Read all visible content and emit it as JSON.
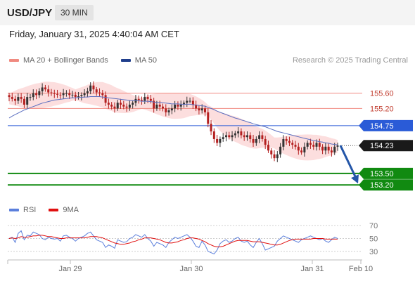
{
  "header": {
    "symbol": "USD/JPY",
    "interval": "30 MIN"
  },
  "datetime": "Friday, January 31, 2025 4:40:04 AM CET",
  "legend": {
    "bb_label": "MA 20 + Bollinger Bands",
    "bb_color": "#f08a80",
    "ma50_label": "MA 50",
    "ma50_color": "#1f3e8c"
  },
  "credit": "Research © 2025 Trading Central",
  "rsi_legend": {
    "rsi_label": "RSI",
    "rsi_color": "#5b7fdc",
    "ma_label": "9MA",
    "ma_color": "#e01010"
  },
  "colors": {
    "up": "#333333",
    "down": "#b42020",
    "band": "#fbd6d6",
    "resistance": "#f08a80",
    "last": "#1a1a1a",
    "ma50_level": "#2a5bd7",
    "support": "#118a11",
    "arrow": "#2456a8"
  },
  "chart_data": [
    {
      "type": "candlestick",
      "symbol": "USD/JPY",
      "ylim": [
        152.8,
        156.2
      ],
      "x_ticks": [
        "Jan 29",
        "Jan 30",
        "Jan 31",
        "Feb 10"
      ],
      "levels": [
        {
          "value": 155.6,
          "label": "155.60",
          "kind": "resistance"
        },
        {
          "value": 155.2,
          "label": "155.20",
          "kind": "resistance"
        },
        {
          "value": 154.75,
          "label": "154.75",
          "kind": "ma50"
        },
        {
          "value": 154.23,
          "label": "154.23",
          "kind": "last"
        },
        {
          "value": 153.5,
          "label": "153.50",
          "kind": "support"
        },
        {
          "value": 153.2,
          "label": "153.20",
          "kind": "support"
        }
      ],
      "forecast": {
        "from": 154.23,
        "to": 153.2,
        "direction": "down"
      },
      "close": [
        155.5,
        155.45,
        155.4,
        155.5,
        155.45,
        155.3,
        155.5,
        155.5,
        155.6,
        155.55,
        155.65,
        155.75,
        155.7,
        155.62,
        155.6,
        155.58,
        155.56,
        155.55,
        155.6,
        155.6,
        155.55,
        155.56,
        155.5,
        155.52,
        155.55,
        155.6,
        155.65,
        155.8,
        155.7,
        155.62,
        155.6,
        155.55,
        155.35,
        155.3,
        155.25,
        155.2,
        155.35,
        155.3,
        155.25,
        155.22,
        155.3,
        155.35,
        155.45,
        155.42,
        155.4,
        155.5,
        155.45,
        155.4,
        155.2,
        155.3,
        155.25,
        155.2,
        155.1,
        155.15,
        155.2,
        155.3,
        155.25,
        155.3,
        155.35,
        155.4,
        155.4,
        155.3,
        155.2,
        155.15,
        155.2,
        155.1,
        154.8,
        154.6,
        154.4,
        154.3,
        154.4,
        154.45,
        154.5,
        154.45,
        154.5,
        154.55,
        154.6,
        154.5,
        154.45,
        154.5,
        154.4,
        154.3,
        154.4,
        154.5,
        154.4,
        154.25,
        154.1,
        154.0,
        153.9,
        154.0,
        154.2,
        154.4,
        154.35,
        154.3,
        154.25,
        154.2,
        154.1,
        154.05,
        154.2,
        154.3,
        154.25,
        154.2,
        154.3,
        154.2,
        154.1,
        154.2,
        154.1,
        154.05,
        154.2,
        154.23
      ],
      "ma20": [
        155.45,
        155.46,
        155.47,
        155.48,
        155.48,
        155.48,
        155.49,
        155.5,
        155.51,
        155.52,
        155.53,
        155.55,
        155.56,
        155.57,
        155.57,
        155.58,
        155.58,
        155.58,
        155.58,
        155.58,
        155.57,
        155.57,
        155.56,
        155.56,
        155.56,
        155.56,
        155.57,
        155.58,
        155.58,
        155.58,
        155.57,
        155.56,
        155.53,
        155.5,
        155.47,
        155.43,
        155.41,
        155.39,
        155.37,
        155.35,
        155.34,
        155.33,
        155.33,
        155.33,
        155.33,
        155.34,
        155.34,
        155.34,
        155.33,
        155.32,
        155.31,
        155.3,
        155.29,
        155.28,
        155.27,
        155.27,
        155.27,
        155.27,
        155.27,
        155.28,
        155.29,
        155.28,
        155.27,
        155.25,
        155.23,
        155.2,
        155.15,
        155.08,
        155.0,
        154.92,
        154.86,
        154.81,
        154.77,
        154.73,
        154.69,
        154.66,
        154.63,
        154.59,
        154.56,
        154.53,
        154.49,
        154.46,
        154.44,
        154.43,
        154.42,
        154.4,
        154.37,
        154.34,
        154.3,
        154.27,
        154.25,
        154.24,
        154.23,
        154.22,
        154.21,
        154.2,
        154.19,
        154.18,
        154.18,
        154.18,
        154.18,
        154.18,
        154.19,
        154.19,
        154.19,
        154.2,
        154.2,
        154.2,
        154.21,
        154.21
      ],
      "ma50": [
        154.95,
        155.0,
        155.04,
        155.08,
        155.12,
        155.16,
        155.19,
        155.22,
        155.25,
        155.28,
        155.31,
        155.34,
        155.36,
        155.38,
        155.4,
        155.42,
        155.43,
        155.44,
        155.45,
        155.46,
        155.47,
        155.48,
        155.48,
        155.49,
        155.49,
        155.5,
        155.5,
        155.51,
        155.51,
        155.51,
        155.51,
        155.5,
        155.49,
        155.48,
        155.47,
        155.46,
        155.45,
        155.44,
        155.43,
        155.42,
        155.41,
        155.4,
        155.4,
        155.4,
        155.39,
        155.39,
        155.39,
        155.38,
        155.37,
        155.36,
        155.36,
        155.35,
        155.34,
        155.33,
        155.32,
        155.32,
        155.32,
        155.31,
        155.31,
        155.31,
        155.31,
        155.3,
        155.29,
        155.28,
        155.27,
        155.26,
        155.23,
        155.2,
        155.17,
        155.13,
        155.1,
        155.07,
        155.04,
        155.01,
        154.98,
        154.95,
        154.93,
        154.9,
        154.88,
        154.85,
        154.83,
        154.8,
        154.78,
        154.76,
        154.74,
        154.72,
        154.69,
        154.66,
        154.63,
        154.6,
        154.58,
        154.56,
        154.54,
        154.52,
        154.5,
        154.48,
        154.46,
        154.44,
        154.42,
        154.4,
        154.38,
        154.36,
        154.35,
        154.33,
        154.32,
        154.3,
        154.29,
        154.27,
        154.26,
        154.25
      ]
    },
    {
      "type": "line",
      "name": "RSI",
      "ylim": [
        20,
        80
      ],
      "y_ticks": [
        70,
        50,
        30
      ],
      "rsi": [
        50,
        52,
        44,
        58,
        62,
        48,
        55,
        54,
        60,
        58,
        56,
        50,
        48,
        52,
        50,
        49,
        50,
        46,
        54,
        55,
        52,
        50,
        46,
        50,
        52,
        54,
        58,
        60,
        54,
        48,
        46,
        44,
        36,
        40,
        38,
        35,
        48,
        46,
        44,
        45,
        50,
        52,
        56,
        54,
        52,
        56,
        50,
        46,
        38,
        44,
        42,
        40,
        36,
        44,
        48,
        52,
        50,
        52,
        54,
        56,
        52,
        46,
        38,
        36,
        46,
        40,
        30,
        28,
        26,
        32,
        42,
        46,
        48,
        44,
        46,
        50,
        52,
        46,
        44,
        46,
        40,
        36,
        44,
        50,
        42,
        32,
        34,
        36,
        38,
        46,
        50,
        54,
        52,
        50,
        48,
        46,
        44,
        48,
        50,
        52,
        54,
        52,
        50,
        48,
        50,
        46,
        44,
        48,
        52,
        50
      ],
      "ma9": [
        50,
        51,
        50,
        51,
        53,
        52,
        52,
        53,
        54,
        54,
        55,
        55,
        54,
        53,
        53,
        52,
        51,
        50,
        50,
        51,
        51,
        51,
        51,
        51,
        51,
        51,
        52,
        53,
        53,
        53,
        52,
        51,
        49,
        47,
        45,
        43,
        42,
        41,
        41,
        42,
        43,
        45,
        46,
        48,
        49,
        51,
        51,
        51,
        50,
        49,
        48,
        46,
        44,
        43,
        43,
        44,
        45,
        47,
        48,
        50,
        51,
        51,
        50,
        49,
        47,
        45,
        42,
        40,
        38,
        37,
        37,
        38,
        40,
        42,
        44,
        46,
        47,
        47,
        47,
        47,
        46,
        45,
        45,
        45,
        44,
        43,
        42,
        41,
        40,
        40,
        41,
        43,
        45,
        47,
        48,
        49,
        49,
        49,
        49,
        49,
        49,
        50,
        50,
        50,
        50,
        49,
        49,
        49,
        49,
        49
      ]
    }
  ]
}
